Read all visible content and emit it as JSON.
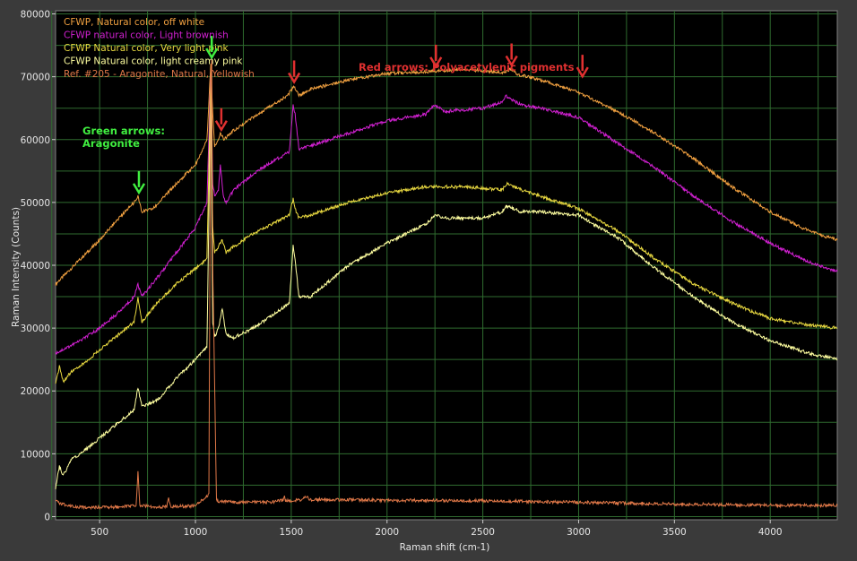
{
  "chart_data": {
    "type": "line",
    "xlabel": "Raman shift (cm-1)",
    "ylabel": "Raman Intensity (Counts)",
    "xlim": [
      270,
      4350
    ],
    "ylim": [
      -500,
      80500
    ],
    "xticks": [
      500,
      1000,
      1500,
      2000,
      2500,
      3000,
      3500,
      4000
    ],
    "yticks": [
      0,
      10000,
      20000,
      30000,
      40000,
      50000,
      60000,
      70000,
      80000
    ],
    "grid": true,
    "background": "#000000",
    "grid_color": "#2f6b2f",
    "legend_position": "top-left",
    "series": [
      {
        "name": "CFWP, Natural color, off white",
        "color": "#f0a040",
        "x": [
          270,
          400,
          500,
          600,
          680,
          700,
          720,
          780,
          900,
          1000,
          1060,
          1080,
          1090,
          1100,
          1120,
          1130,
          1150,
          1200,
          1300,
          1400,
          1480,
          1515,
          1540,
          1600,
          1800,
          2000,
          2200,
          2400,
          2600,
          2650,
          2680,
          2800,
          3000,
          3200,
          3400,
          3600,
          3800,
          4000,
          4200,
          4350
        ],
        "y": [
          37000,
          41000,
          44000,
          47500,
          50000,
          51000,
          48500,
          49000,
          53000,
          56000,
          60000,
          72000,
          64000,
          59000,
          60000,
          61000,
          60000,
          61500,
          63500,
          65500,
          67000,
          68500,
          67000,
          68000,
          69500,
          70500,
          70800,
          71200,
          70700,
          71200,
          70400,
          69500,
          67500,
          64500,
          61000,
          57000,
          52500,
          48500,
          45500,
          44000
        ]
      },
      {
        "name": "CFWP natural color, Light brownish",
        "color": "#d020d0",
        "x": [
          270,
          400,
          500,
          600,
          680,
          700,
          720,
          800,
          900,
          1000,
          1060,
          1080,
          1090,
          1100,
          1120,
          1130,
          1145,
          1160,
          1200,
          1300,
          1400,
          1490,
          1510,
          1520,
          1540,
          1600,
          1800,
          2000,
          2200,
          2250,
          2300,
          2500,
          2600,
          2620,
          2700,
          2800,
          3000,
          3100,
          3200,
          3400,
          3600,
          3800,
          4000,
          4200,
          4350
        ],
        "y": [
          26000,
          28000,
          30000,
          32500,
          35000,
          37000,
          35000,
          38000,
          42000,
          46000,
          50000,
          71000,
          53000,
          51000,
          52000,
          56000,
          51000,
          50000,
          52000,
          54500,
          56500,
          58000,
          65500,
          64000,
          58500,
          59000,
          61000,
          63000,
          64000,
          65500,
          64500,
          65000,
          66000,
          67000,
          65500,
          65000,
          63500,
          61500,
          59500,
          55500,
          51000,
          47000,
          43500,
          40500,
          39000
        ]
      },
      {
        "name": "CFWP Natural color, Very light pink",
        "color": "#e8d840",
        "x": [
          270,
          290,
          310,
          350,
          400,
          500,
          600,
          680,
          700,
          720,
          800,
          900,
          1000,
          1060,
          1080,
          1090,
          1100,
          1120,
          1140,
          1160,
          1200,
          1300,
          1400,
          1490,
          1510,
          1520,
          1540,
          1600,
          1800,
          2000,
          2200,
          2400,
          2600,
          2630,
          2700,
          2800,
          3000,
          3200,
          3400,
          3600,
          3800,
          4000,
          4200,
          4350
        ],
        "y": [
          21000,
          24000,
          21500,
          23000,
          24000,
          26500,
          29000,
          31000,
          35000,
          31000,
          34000,
          37000,
          39500,
          41000,
          71000,
          46000,
          42000,
          43000,
          44000,
          42000,
          43000,
          45000,
          46500,
          48000,
          50500,
          49000,
          47500,
          48000,
          50000,
          51500,
          52500,
          52500,
          52000,
          53000,
          52000,
          51000,
          49000,
          45500,
          41000,
          37000,
          34000,
          31500,
          30500,
          30000
        ]
      },
      {
        "name": "CFWP Natural color, light creamy pink",
        "color": "#ffffa0",
        "x": [
          270,
          290,
          310,
          350,
          400,
          500,
          600,
          680,
          700,
          720,
          800,
          900,
          1000,
          1060,
          1080,
          1090,
          1100,
          1120,
          1140,
          1160,
          1200,
          1300,
          1400,
          1490,
          1510,
          1520,
          1540,
          1600,
          1800,
          2000,
          2200,
          2250,
          2300,
          2400,
          2500,
          2600,
          2620,
          2700,
          2800,
          3000,
          3050,
          3200,
          3400,
          3600,
          3800,
          4000,
          4200,
          4350
        ],
        "y": [
          4500,
          8000,
          6500,
          9000,
          10000,
          12500,
          15000,
          17000,
          20500,
          17500,
          18500,
          22000,
          25000,
          27000,
          69000,
          31000,
          28500,
          30000,
          33000,
          29000,
          28500,
          30000,
          32000,
          34000,
          43000,
          41000,
          35000,
          35000,
          40000,
          43500,
          46500,
          48000,
          47500,
          47500,
          47500,
          48500,
          49500,
          48500,
          48500,
          48000,
          47000,
          44500,
          39500,
          35000,
          31000,
          28000,
          26000,
          25000
        ]
      },
      {
        "name": "Ref. #205 - Aragonite, Natural, Yellowish",
        "color": "#e07848",
        "x": [
          270,
          300,
          400,
          500,
          600,
          690,
          700,
          710,
          800,
          850,
          860,
          870,
          1000,
          1070,
          1080,
          1085,
          1090,
          1110,
          1200,
          1400,
          1460,
          1465,
          1470,
          1500,
          1550,
          1575,
          1600,
          1800,
          2000,
          2500,
          3000,
          3500,
          4000,
          4350
        ],
        "y": [
          2500,
          2000,
          1500,
          1500,
          1500,
          1800,
          7000,
          1800,
          1500,
          1600,
          2800,
          1600,
          1700,
          3500,
          71000,
          72500,
          40000,
          2500,
          2300,
          2300,
          2600,
          3500,
          2600,
          2500,
          2700,
          3300,
          2700,
          2700,
          2600,
          2500,
          2300,
          2000,
          1800,
          1800
        ]
      }
    ],
    "annotations": [
      {
        "text": "Green arrows:\nAragonite",
        "color": "#40ee40"
      },
      {
        "text": "Red arrows: Polyacetylenic pigments",
        "color": "#e03030"
      }
    ],
    "green_arrows": [
      {
        "x": 705,
        "y": 51000
      },
      {
        "x": 1085,
        "y": 72500
      }
    ],
    "red_arrows": [
      {
        "x": 1135,
        "y": 61000
      },
      {
        "x": 1515,
        "y": 68600
      },
      {
        "x": 2255,
        "y": 71100
      },
      {
        "x": 2650,
        "y": 71300
      },
      {
        "x": 3020,
        "y": 69500
      }
    ]
  }
}
